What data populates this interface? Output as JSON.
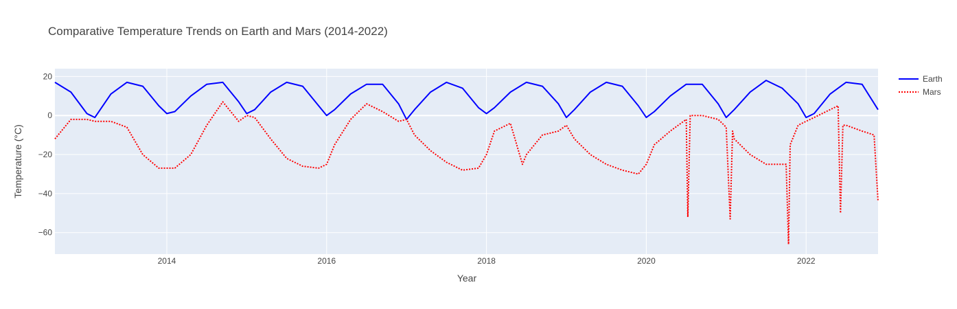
{
  "chart_data": {
    "type": "line",
    "title": "Comparative Temperature Trends on Earth and Mars (2014-2022)",
    "xlabel": "Year",
    "ylabel": "Temperature (°C)",
    "xlim": [
      2012.6,
      2022.9
    ],
    "ylim": [
      -71,
      24
    ],
    "x_ticks": [
      2014,
      2016,
      2018,
      2020,
      2022
    ],
    "y_ticks": [
      20,
      0,
      -20,
      -40,
      -60
    ],
    "grid": true,
    "legend_position": "top-right",
    "colors": {
      "plot_bg": "#e5ecf6",
      "grid": "#ffffff",
      "earth": "#0000ff",
      "mars": "#ff0000"
    },
    "series": [
      {
        "name": "Earth",
        "style": "solid",
        "x": [
          2012.6,
          2012.8,
          2013.0,
          2013.1,
          2013.3,
          2013.5,
          2013.7,
          2013.9,
          2014.0,
          2014.1,
          2014.3,
          2014.5,
          2014.7,
          2014.9,
          2015.0,
          2015.1,
          2015.3,
          2015.5,
          2015.7,
          2015.9,
          2016.0,
          2016.1,
          2016.3,
          2016.5,
          2016.7,
          2016.9,
          2017.0,
          2017.1,
          2017.3,
          2017.5,
          2017.7,
          2017.9,
          2018.0,
          2018.1,
          2018.3,
          2018.5,
          2018.7,
          2018.9,
          2019.0,
          2019.1,
          2019.3,
          2019.5,
          2019.7,
          2019.9,
          2020.0,
          2020.1,
          2020.3,
          2020.5,
          2020.7,
          2020.9,
          2021.0,
          2021.1,
          2021.3,
          2021.5,
          2021.7,
          2021.9,
          2022.0,
          2022.1,
          2022.3,
          2022.5,
          2022.7,
          2022.9
        ],
        "y": [
          17,
          12,
          1,
          -1,
          11,
          17,
          15,
          5,
          1,
          2,
          10,
          16,
          17,
          7,
          1,
          3,
          12,
          17,
          15,
          5,
          0,
          3,
          11,
          16,
          16,
          6,
          -2,
          3,
          12,
          17,
          14,
          4,
          1,
          4,
          12,
          17,
          15,
          6,
          -1,
          3,
          12,
          17,
          15,
          5,
          -1,
          2,
          10,
          16,
          16,
          6,
          -1,
          3,
          12,
          18,
          14,
          6,
          -1,
          1,
          11,
          17,
          16,
          3
        ]
      },
      {
        "name": "Mars",
        "style": "dotted",
        "x": [
          2012.6,
          2012.8,
          2013.0,
          2013.1,
          2013.3,
          2013.5,
          2013.7,
          2013.9,
          2014.0,
          2014.1,
          2014.3,
          2014.5,
          2014.7,
          2014.9,
          2015.0,
          2015.1,
          2015.3,
          2015.5,
          2015.7,
          2015.9,
          2016.0,
          2016.1,
          2016.3,
          2016.5,
          2016.7,
          2016.9,
          2017.0,
          2017.1,
          2017.3,
          2017.5,
          2017.7,
          2017.9,
          2018.0,
          2018.1,
          2018.3,
          2018.45,
          2018.5,
          2018.7,
          2018.9,
          2019.0,
          2019.1,
          2019.3,
          2019.5,
          2019.7,
          2019.9,
          2020.0,
          2020.1,
          2020.3,
          2020.5,
          2020.52,
          2020.55,
          2020.7,
          2020.9,
          2021.0,
          2021.05,
          2021.08,
          2021.1,
          2021.3,
          2021.5,
          2021.7,
          2021.75,
          2021.78,
          2021.8,
          2021.9,
          2022.0,
          2022.1,
          2022.3,
          2022.4,
          2022.43,
          2022.46,
          2022.5,
          2022.7,
          2022.85,
          2022.9
        ],
        "y": [
          -12,
          -2,
          -2,
          -3,
          -3,
          -6,
          -20,
          -27,
          -27,
          -27,
          -20,
          -5,
          7,
          -3,
          0,
          -1,
          -12,
          -22,
          -26,
          -27,
          -25,
          -15,
          -2,
          6,
          2,
          -3,
          -2,
          -10,
          -18,
          -24,
          -28,
          -27,
          -20,
          -8,
          -4,
          -25,
          -20,
          -10,
          -8,
          -5,
          -12,
          -20,
          -25,
          -28,
          -30,
          -25,
          -15,
          -8,
          -2,
          -52,
          0,
          0,
          -2,
          -6,
          -53,
          -8,
          -12,
          -20,
          -25,
          -25,
          -25,
          -66,
          -15,
          -5,
          -3,
          -1,
          3,
          5,
          -50,
          -5,
          -5,
          -8,
          -10,
          -44
        ]
      }
    ]
  }
}
